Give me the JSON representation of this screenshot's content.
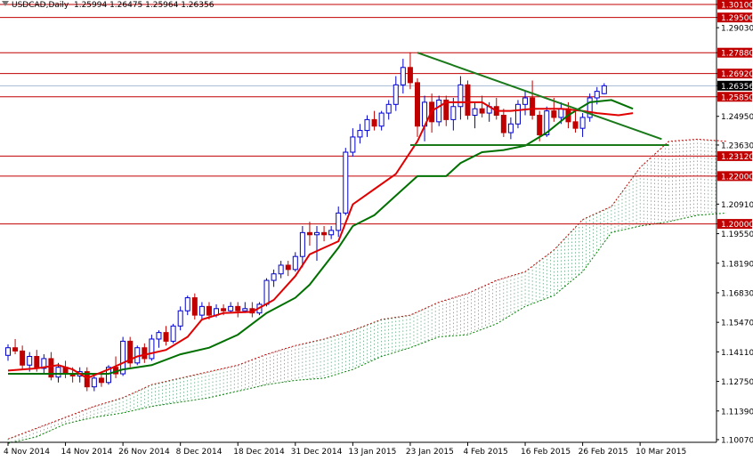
{
  "header": {
    "symbol": "USDCAD,Daily",
    "ohlc": "1.25994 1.26475 1.25964 1.26356"
  },
  "chart_data": {
    "type": "candlestick",
    "symbol": "USDCAD",
    "timeframe": "Daily",
    "y_ticks": [
      1.301,
      1.295,
      1.2903,
      1.2788,
      1.2692,
      1.2636,
      1.2585,
      1.2495,
      1.2363,
      1.2312,
      1.222,
      1.2091,
      1.2,
      1.1955,
      1.1819,
      1.1683,
      1.1547,
      1.1411,
      1.1275,
      1.1139,
      1.1007
    ],
    "y_tick_labels": [
      "1.30100",
      "1.29500",
      "1.29030",
      "1.27880",
      "1.26920",
      "1.26356",
      "1.25850",
      "1.24950",
      "1.23630",
      "1.23120",
      "1.22000",
      "1.20910",
      "1.20000",
      "1.19550",
      "1.18190",
      "1.16830",
      "1.15470",
      "1.14110",
      "1.12750",
      "1.11390",
      "1.10070"
    ],
    "x_labels": [
      {
        "label": "4 Nov 2014",
        "bar": 0
      },
      {
        "label": "14 Nov 2014",
        "bar": 8
      },
      {
        "label": "26 Nov 2014",
        "bar": 16
      },
      {
        "label": "8 Dec 2014",
        "bar": 24
      },
      {
        "label": "18 Dec 2014",
        "bar": 32
      },
      {
        "label": "31 Dec 2014",
        "bar": 40
      },
      {
        "label": "13 Jan 2015",
        "bar": 48
      },
      {
        "label": "23 Jan 2015",
        "bar": 56
      },
      {
        "label": "4 Feb 2015",
        "bar": 64
      },
      {
        "label": "16 Feb 2015",
        "bar": 72
      },
      {
        "label": "26 Feb 2015",
        "bar": 80
      },
      {
        "label": "10 Mar 2015",
        "bar": 88
      }
    ],
    "horizontal_levels": [
      {
        "value": 1.301,
        "label": "1.30100"
      },
      {
        "value": 1.295,
        "label": "1.29500"
      },
      {
        "value": 1.2788,
        "label": "1.27880"
      },
      {
        "value": 1.2692,
        "label": "1.26920"
      },
      {
        "value": 1.2585,
        "label": "1.25850"
      },
      {
        "value": 1.2312,
        "label": "1.23120"
      },
      {
        "value": 1.222,
        "label": "1.22000"
      },
      {
        "value": 1.2,
        "label": "1.20000"
      }
    ],
    "current_price": {
      "value": 1.26356,
      "label": "1.26356"
    },
    "candles": [
      [
        1.1395,
        1.1446,
        1.137,
        1.143
      ],
      [
        1.143,
        1.147,
        1.14,
        1.1415
      ],
      [
        1.1415,
        1.144,
        1.133,
        1.135
      ],
      [
        1.135,
        1.141,
        1.132,
        1.139
      ],
      [
        1.139,
        1.142,
        1.132,
        1.1335
      ],
      [
        1.1335,
        1.14,
        1.131,
        1.138
      ],
      [
        1.138,
        1.141,
        1.128,
        1.1295
      ],
      [
        1.1295,
        1.136,
        1.127,
        1.134
      ],
      [
        1.134,
        1.137,
        1.129,
        1.131
      ],
      [
        1.131,
        1.134,
        1.127,
        1.13
      ],
      [
        1.13,
        1.134,
        1.127,
        1.132
      ],
      [
        1.132,
        1.134,
        1.123,
        1.125
      ],
      [
        1.125,
        1.131,
        1.123,
        1.129
      ],
      [
        1.129,
        1.132,
        1.125,
        1.127
      ],
      [
        1.127,
        1.135,
        1.126,
        1.134
      ],
      [
        1.134,
        1.139,
        1.129,
        1.131
      ],
      [
        1.131,
        1.148,
        1.13,
        1.146
      ],
      [
        1.146,
        1.148,
        1.134,
        1.136
      ],
      [
        1.136,
        1.144,
        1.135,
        1.143
      ],
      [
        1.143,
        1.145,
        1.136,
        1.138
      ],
      [
        1.138,
        1.149,
        1.137,
        1.147
      ],
      [
        1.147,
        1.151,
        1.143,
        1.15
      ],
      [
        1.15,
        1.153,
        1.144,
        1.146
      ],
      [
        1.146,
        1.154,
        1.145,
        1.153
      ],
      [
        1.153,
        1.162,
        1.151,
        1.16
      ],
      [
        1.16,
        1.167,
        1.158,
        1.166
      ],
      [
        1.166,
        1.168,
        1.156,
        1.158
      ],
      [
        1.158,
        1.164,
        1.156,
        1.162
      ],
      [
        1.162,
        1.164,
        1.156,
        1.158
      ],
      [
        1.158,
        1.163,
        1.157,
        1.161
      ],
      [
        1.161,
        1.163,
        1.158,
        1.16
      ],
      [
        1.16,
        1.164,
        1.159,
        1.162
      ],
      [
        1.162,
        1.164,
        1.157,
        1.16
      ],
      [
        1.16,
        1.164,
        1.159,
        1.161
      ],
      [
        1.161,
        1.164,
        1.157,
        1.159
      ],
      [
        1.159,
        1.164,
        1.158,
        1.163
      ],
      [
        1.163,
        1.175,
        1.162,
        1.174
      ],
      [
        1.174,
        1.179,
        1.171,
        1.177
      ],
      [
        1.177,
        1.183,
        1.175,
        1.181
      ],
      [
        1.181,
        1.183,
        1.176,
        1.179
      ],
      [
        1.179,
        1.187,
        1.178,
        1.185
      ],
      [
        1.185,
        1.199,
        1.18,
        1.196
      ],
      [
        1.196,
        1.201,
        1.19,
        1.195
      ],
      [
        1.195,
        1.199,
        1.183,
        1.196
      ],
      [
        1.196,
        1.199,
        1.192,
        1.195
      ],
      [
        1.195,
        1.199,
        1.193,
        1.197
      ],
      [
        1.197,
        1.208,
        1.194,
        1.205
      ],
      [
        1.205,
        1.235,
        1.204,
        1.233
      ],
      [
        1.233,
        1.244,
        1.231,
        1.24
      ],
      [
        1.24,
        1.246,
        1.237,
        1.243
      ],
      [
        1.243,
        1.25,
        1.24,
        1.248
      ],
      [
        1.248,
        1.252,
        1.243,
        1.245
      ],
      [
        1.245,
        1.252,
        1.243,
        1.251
      ],
      [
        1.251,
        1.257,
        1.248,
        1.255
      ],
      [
        1.255,
        1.268,
        1.252,
        1.264
      ],
      [
        1.264,
        1.276,
        1.26,
        1.272
      ],
      [
        1.272,
        1.279,
        1.262,
        1.265
      ],
      [
        1.265,
        1.267,
        1.24,
        1.245
      ],
      [
        1.245,
        1.259,
        1.238,
        1.256
      ],
      [
        1.256,
        1.26,
        1.242,
        1.247
      ],
      [
        1.247,
        1.259,
        1.245,
        1.257
      ],
      [
        1.257,
        1.259,
        1.245,
        1.248
      ],
      [
        1.248,
        1.258,
        1.243,
        1.254
      ],
      [
        1.254,
        1.268,
        1.248,
        1.264
      ],
      [
        1.264,
        1.266,
        1.248,
        1.25
      ],
      [
        1.25,
        1.256,
        1.244,
        1.253
      ],
      [
        1.253,
        1.259,
        1.249,
        1.251
      ],
      [
        1.251,
        1.256,
        1.247,
        1.254
      ],
      [
        1.254,
        1.258,
        1.248,
        1.25
      ],
      [
        1.25,
        1.253,
        1.24,
        1.242
      ],
      [
        1.242,
        1.249,
        1.239,
        1.246
      ],
      [
        1.246,
        1.257,
        1.244,
        1.255
      ],
      [
        1.255,
        1.261,
        1.25,
        1.258
      ],
      [
        1.258,
        1.266,
        1.248,
        1.25
      ],
      [
        1.25,
        1.252,
        1.238,
        1.241
      ],
      [
        1.241,
        1.254,
        1.24,
        1.252
      ],
      [
        1.252,
        1.258,
        1.247,
        1.249
      ],
      [
        1.249,
        1.256,
        1.246,
        1.253
      ],
      [
        1.253,
        1.256,
        1.244,
        1.247
      ],
      [
        1.247,
        1.252,
        1.242,
        1.244
      ],
      [
        1.244,
        1.251,
        1.24,
        1.249
      ],
      [
        1.249,
        1.26,
        1.247,
        1.258
      ],
      [
        1.258,
        1.263,
        1.255,
        1.261
      ],
      [
        1.25994,
        1.26475,
        1.25964,
        1.26356
      ]
    ],
    "tenkan": [
      [
        0,
        1.1325
      ],
      [
        4,
        1.1335
      ],
      [
        7,
        1.135
      ],
      [
        9,
        1.133
      ],
      [
        11,
        1.129
      ],
      [
        14,
        1.133
      ],
      [
        18,
        1.139
      ],
      [
        22,
        1.142
      ],
      [
        25,
        1.148
      ],
      [
        27,
        1.156
      ],
      [
        30,
        1.159
      ],
      [
        34,
        1.1595
      ],
      [
        37,
        1.165
      ],
      [
        40,
        1.176
      ],
      [
        42,
        1.186
      ],
      [
        44,
        1.189
      ],
      [
        46,
        1.192
      ],
      [
        48,
        1.209
      ],
      [
        51,
        1.216
      ],
      [
        54,
        1.223
      ],
      [
        57,
        1.238
      ],
      [
        59,
        1.252
      ],
      [
        61,
        1.256
      ],
      [
        63,
        1.256
      ],
      [
        66,
        1.256
      ],
      [
        68,
        1.252
      ],
      [
        70,
        1.252
      ],
      [
        73,
        1.253
      ],
      [
        77,
        1.253
      ],
      [
        80,
        1.252
      ],
      [
        82,
        1.251
      ],
      [
        85,
        1.25
      ],
      [
        87,
        1.251
      ]
    ],
    "kijun": [
      [
        0,
        1.131
      ],
      [
        6,
        1.131
      ],
      [
        10,
        1.131
      ],
      [
        14,
        1.131
      ],
      [
        16,
        1.133
      ],
      [
        20,
        1.135
      ],
      [
        24,
        1.14
      ],
      [
        28,
        1.143
      ],
      [
        32,
        1.149
      ],
      [
        36,
        1.159
      ],
      [
        40,
        1.166
      ],
      [
        42,
        1.172
      ],
      [
        46,
        1.189
      ],
      [
        48,
        1.199
      ],
      [
        51,
        1.204
      ],
      [
        54,
        1.213
      ],
      [
        57,
        1.222
      ],
      [
        61,
        1.222
      ],
      [
        63,
        1.228
      ],
      [
        66,
        1.233
      ],
      [
        69,
        1.234
      ],
      [
        72,
        1.236
      ],
      [
        75,
        1.242
      ],
      [
        78,
        1.25
      ],
      [
        81,
        1.256
      ],
      [
        84,
        1.257
      ],
      [
        87,
        1.253
      ]
    ],
    "cloud_span_a": [
      [
        0,
        1.101
      ],
      [
        4,
        1.106
      ],
      [
        8,
        1.111
      ],
      [
        12,
        1.116
      ],
      [
        16,
        1.12
      ],
      [
        20,
        1.126
      ],
      [
        24,
        1.129
      ],
      [
        28,
        1.132
      ],
      [
        32,
        1.135
      ],
      [
        36,
        1.14
      ],
      [
        40,
        1.144
      ],
      [
        44,
        1.147
      ],
      [
        48,
        1.151
      ],
      [
        52,
        1.156
      ],
      [
        56,
        1.158
      ],
      [
        60,
        1.164
      ],
      [
        64,
        1.168
      ],
      [
        68,
        1.174
      ],
      [
        72,
        1.178
      ],
      [
        76,
        1.188
      ],
      [
        80,
        1.202
      ],
      [
        84,
        1.208
      ],
      [
        88,
        1.226
      ],
      [
        92,
        1.238
      ],
      [
        96,
        1.239
      ],
      [
        100,
        1.238
      ]
    ],
    "cloud_span_b": [
      [
        0,
        1.099
      ],
      [
        4,
        1.102
      ],
      [
        8,
        1.108
      ],
      [
        12,
        1.111
      ],
      [
        16,
        1.113
      ],
      [
        20,
        1.116
      ],
      [
        24,
        1.118
      ],
      [
        28,
        1.12
      ],
      [
        32,
        1.123
      ],
      [
        36,
        1.126
      ],
      [
        40,
        1.128
      ],
      [
        44,
        1.129
      ],
      [
        48,
        1.133
      ],
      [
        52,
        1.139
      ],
      [
        56,
        1.143
      ],
      [
        60,
        1.148
      ],
      [
        64,
        1.149
      ],
      [
        68,
        1.154
      ],
      [
        72,
        1.162
      ],
      [
        76,
        1.167
      ],
      [
        80,
        1.178
      ],
      [
        84,
        1.196
      ],
      [
        88,
        1.199
      ],
      [
        92,
        1.201
      ],
      [
        96,
        1.204
      ],
      [
        100,
        1.205
      ]
    ],
    "trendlines": [
      {
        "from": [
          57,
          1.2788
        ],
        "to": [
          91,
          1.239
        ]
      },
      {
        "from": [
          56,
          1.2363
        ],
        "to": [
          92,
          1.2363
        ]
      }
    ]
  }
}
